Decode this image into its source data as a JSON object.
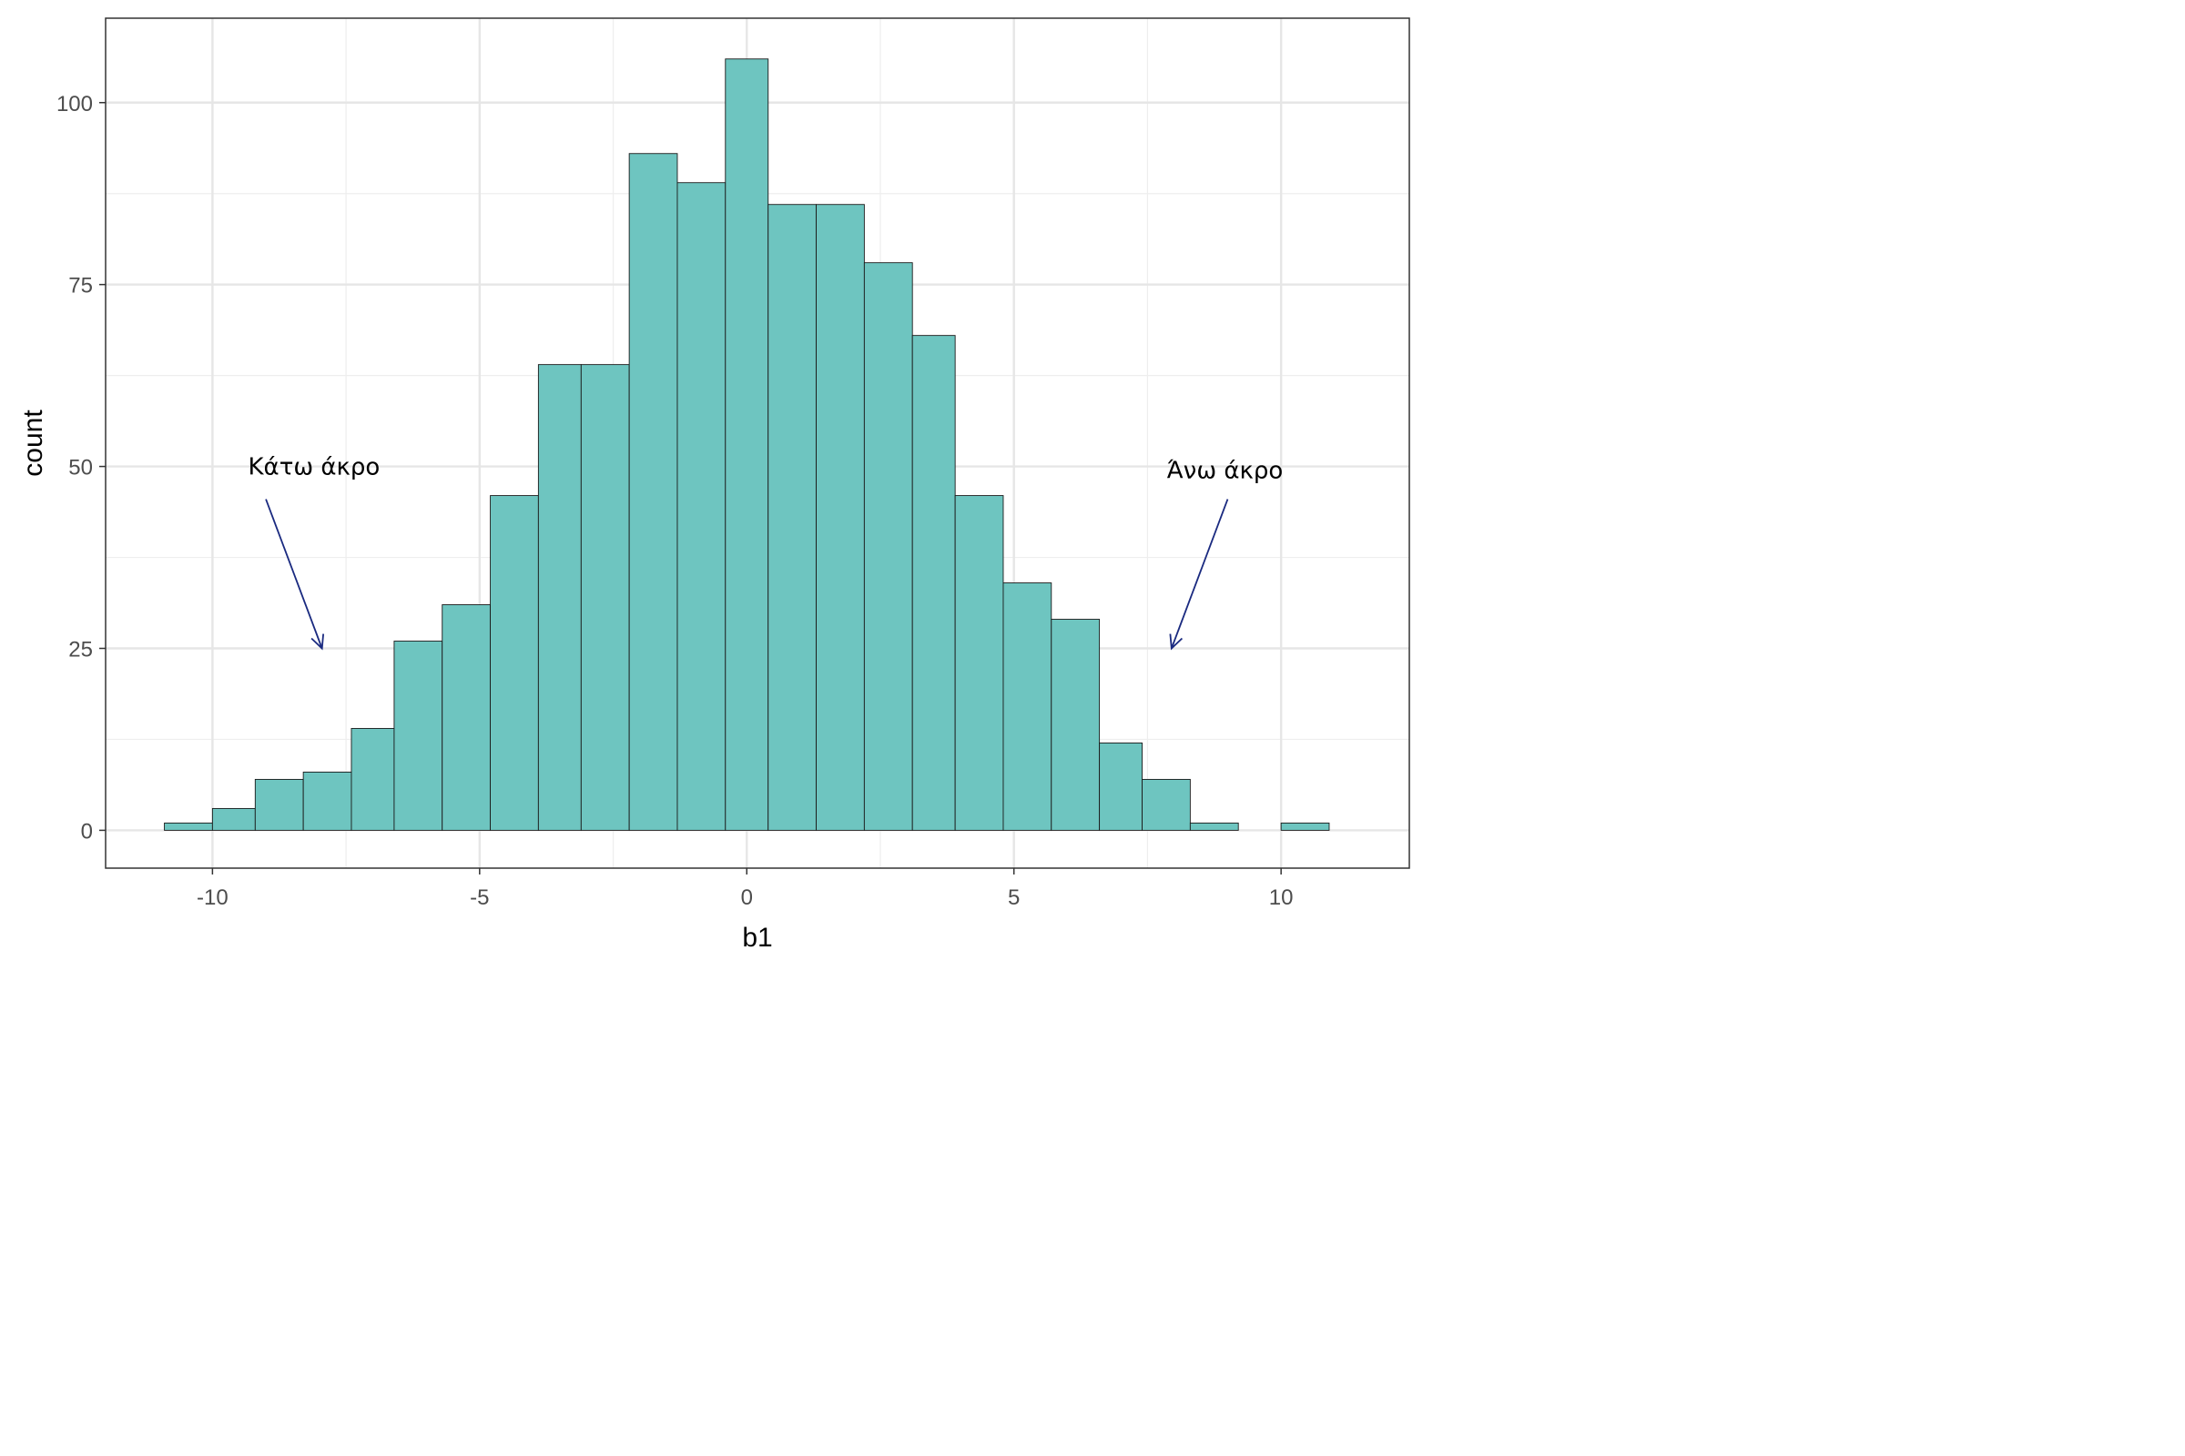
{
  "chart_data": {
    "type": "bar",
    "subtype": "histogram",
    "xlabel": "b1",
    "ylabel": "count",
    "xlim": [
      -12,
      12.4
    ],
    "ylim": [
      -5.2,
      111.6
    ],
    "x_ticks": [
      -10,
      -5,
      0,
      5,
      10
    ],
    "x_tick_labels": [
      "-10",
      "-5",
      "0",
      "5",
      "10"
    ],
    "y_ticks": [
      0,
      25,
      50,
      75,
      100
    ],
    "y_tick_labels": [
      "0",
      "25",
      "50",
      "75",
      "100"
    ],
    "grid": true,
    "bin_width": 0.87,
    "bins": [
      {
        "x0": -10.9,
        "x1": -10.0,
        "count": 1
      },
      {
        "x0": -10.0,
        "x1": -9.2,
        "count": 3
      },
      {
        "x0": -9.2,
        "x1": -8.3,
        "count": 7
      },
      {
        "x0": -8.3,
        "x1": -7.4,
        "count": 8
      },
      {
        "x0": -7.4,
        "x1": -6.6,
        "count": 14
      },
      {
        "x0": -6.6,
        "x1": -5.7,
        "count": 26
      },
      {
        "x0": -5.7,
        "x1": -4.8,
        "count": 31
      },
      {
        "x0": -4.8,
        "x1": -3.9,
        "count": 46
      },
      {
        "x0": -3.9,
        "x1": -3.1,
        "count": 64
      },
      {
        "x0": -3.1,
        "x1": -2.2,
        "count": 64
      },
      {
        "x0": -2.2,
        "x1": -1.3,
        "count": 93
      },
      {
        "x0": -1.3,
        "x1": -0.4,
        "count": 89
      },
      {
        "x0": -0.4,
        "x1": 0.4,
        "count": 106
      },
      {
        "x0": 0.4,
        "x1": 1.3,
        "count": 86
      },
      {
        "x0": 1.3,
        "x1": 2.2,
        "count": 86
      },
      {
        "x0": 2.2,
        "x1": 3.1,
        "count": 78
      },
      {
        "x0": 3.1,
        "x1": 3.9,
        "count": 68
      },
      {
        "x0": 3.9,
        "x1": 4.8,
        "count": 46
      },
      {
        "x0": 4.8,
        "x1": 5.7,
        "count": 34
      },
      {
        "x0": 5.7,
        "x1": 6.6,
        "count": 29
      },
      {
        "x0": 6.6,
        "x1": 7.4,
        "count": 12
      },
      {
        "x0": 7.4,
        "x1": 8.3,
        "count": 7
      },
      {
        "x0": 8.3,
        "x1": 9.2,
        "count": 1
      },
      {
        "x0": 9.2,
        "x1": 10.0,
        "count": 0
      },
      {
        "x0": 10.0,
        "x1": 10.9,
        "count": 1
      }
    ],
    "colors": {
      "bar_fill": "#6ec5c0",
      "bar_stroke": "#1a1a1a",
      "grid_major": "#e6e6e6",
      "grid_minor": "#eeeeee",
      "panel_border": "#333333",
      "arrow": "#1a2a80"
    },
    "annotations": [
      {
        "text": "Κάτω άκρο",
        "label_x": -8.1,
        "label_y": 50,
        "from": [
          -9.0,
          45.5
        ],
        "to": [
          -7.95,
          25
        ]
      },
      {
        "text": "Άνω άκρο",
        "label_x": 8.95,
        "label_y": 49.5,
        "from": [
          9.0,
          45.5
        ],
        "to": [
          7.95,
          25
        ]
      }
    ]
  }
}
